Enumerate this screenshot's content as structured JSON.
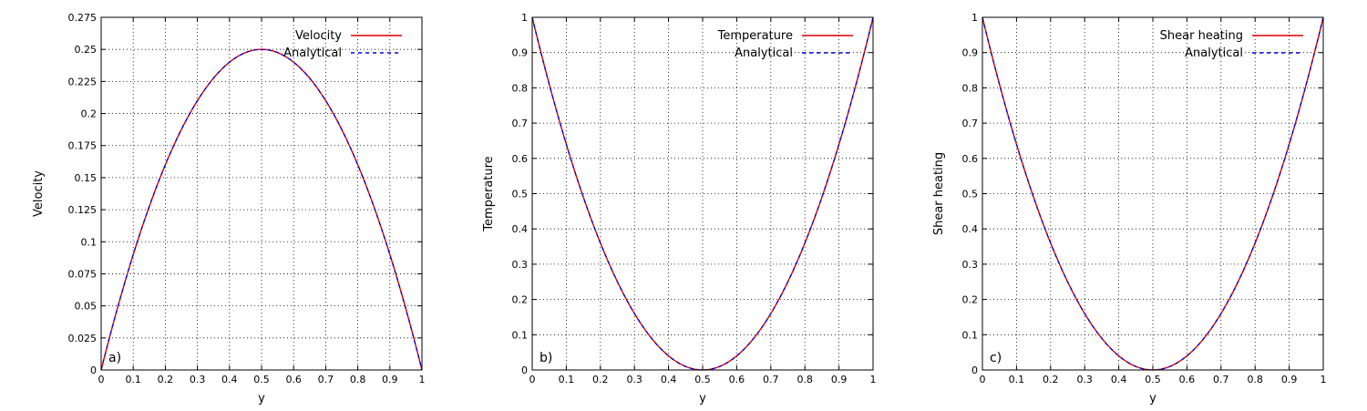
{
  "colors": {
    "numerical": "#e00000",
    "analytical": "#0000e0",
    "grid": "#000000",
    "frame": "#000000",
    "background": "#ffffff"
  },
  "chart_data": [
    {
      "type": "line",
      "panel_label": "a)",
      "xlabel": "y",
      "ylabel": "Velocity",
      "xlim": [
        0,
        1
      ],
      "ylim": [
        0,
        0.275
      ],
      "grid": true,
      "legend_position": "top-right",
      "x_ticks": [
        "0",
        "0.1",
        "0.2",
        "0.3",
        "0.4",
        "0.5",
        "0.6",
        "0.7",
        "0.8",
        "0.9",
        "1"
      ],
      "y_ticks": [
        "0",
        "0.025",
        "0.05",
        "0.075",
        "0.1",
        "0.125",
        "0.15",
        "0.175",
        "0.2",
        "0.225",
        "0.25",
        "0.275"
      ],
      "series": [
        {
          "name": "Velocity",
          "style": "solid",
          "x": [
            0,
            0.1,
            0.2,
            0.3,
            0.4,
            0.5,
            0.6,
            0.7,
            0.8,
            0.9,
            1
          ],
          "values": [
            0,
            0.09,
            0.16,
            0.21,
            0.24,
            0.25,
            0.24,
            0.21,
            0.16,
            0.09,
            0
          ]
        },
        {
          "name": "Analytical",
          "style": "dashed",
          "x": [
            0,
            0.1,
            0.2,
            0.3,
            0.4,
            0.5,
            0.6,
            0.7,
            0.8,
            0.9,
            1
          ],
          "values": [
            0,
            0.09,
            0.16,
            0.21,
            0.24,
            0.25,
            0.24,
            0.21,
            0.16,
            0.09,
            0
          ]
        }
      ]
    },
    {
      "type": "line",
      "panel_label": "b)",
      "xlabel": "y",
      "ylabel": "Temperature",
      "xlim": [
        0,
        1
      ],
      "ylim": [
        0,
        1
      ],
      "grid": true,
      "legend_position": "top-right",
      "x_ticks": [
        "0",
        "0.1",
        "0.2",
        "0.3",
        "0.4",
        "0.5",
        "0.6",
        "0.7",
        "0.8",
        "0.9",
        "1"
      ],
      "y_ticks": [
        "0",
        "0.1",
        "0.2",
        "0.3",
        "0.4",
        "0.5",
        "0.6",
        "0.7",
        "0.8",
        "0.9",
        "1"
      ],
      "series": [
        {
          "name": "Temperature",
          "style": "solid",
          "x": [
            0,
            0.1,
            0.2,
            0.3,
            0.4,
            0.5,
            0.6,
            0.7,
            0.8,
            0.9,
            1
          ],
          "values": [
            1,
            0.64,
            0.36,
            0.16,
            0.04,
            0,
            0.04,
            0.16,
            0.36,
            0.64,
            1
          ]
        },
        {
          "name": "Analytical",
          "style": "dashed",
          "x": [
            0,
            0.1,
            0.2,
            0.3,
            0.4,
            0.5,
            0.6,
            0.7,
            0.8,
            0.9,
            1
          ],
          "values": [
            1,
            0.64,
            0.36,
            0.16,
            0.04,
            0,
            0.04,
            0.16,
            0.36,
            0.64,
            1
          ]
        }
      ]
    },
    {
      "type": "line",
      "panel_label": "c)",
      "xlabel": "y",
      "ylabel": "Shear heating",
      "xlim": [
        0,
        1
      ],
      "ylim": [
        0,
        1
      ],
      "grid": true,
      "legend_position": "top-right",
      "x_ticks": [
        "0",
        "0.1",
        "0.2",
        "0.3",
        "0.4",
        "0.5",
        "0.6",
        "0.7",
        "0.8",
        "0.9",
        "1"
      ],
      "y_ticks": [
        "0",
        "0.1",
        "0.2",
        "0.3",
        "0.4",
        "0.5",
        "0.6",
        "0.7",
        "0.8",
        "0.9",
        "1"
      ],
      "series": [
        {
          "name": "Shear heating",
          "style": "solid",
          "x": [
            0,
            0.1,
            0.2,
            0.3,
            0.4,
            0.5,
            0.6,
            0.7,
            0.8,
            0.9,
            1
          ],
          "values": [
            1,
            0.64,
            0.36,
            0.16,
            0.04,
            0,
            0.04,
            0.16,
            0.36,
            0.64,
            1
          ]
        },
        {
          "name": "Analytical",
          "style": "dashed",
          "x": [
            0,
            0.1,
            0.2,
            0.3,
            0.4,
            0.5,
            0.6,
            0.7,
            0.8,
            0.9,
            1
          ],
          "values": [
            1,
            0.64,
            0.36,
            0.16,
            0.04,
            0,
            0.04,
            0.16,
            0.36,
            0.64,
            1
          ]
        }
      ]
    }
  ]
}
